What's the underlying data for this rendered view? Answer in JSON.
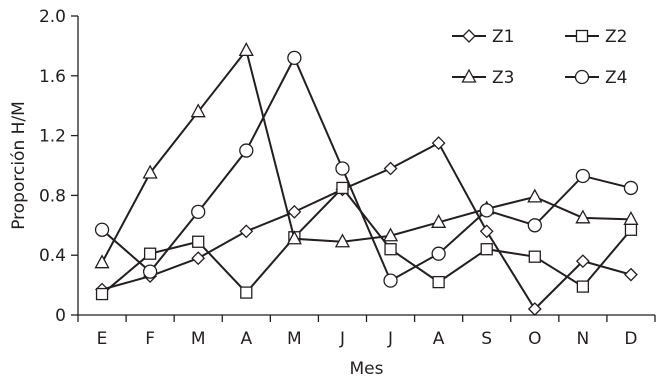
{
  "chart_data": {
    "type": "line",
    "categories": [
      "E",
      "F",
      "M",
      "A",
      "M",
      "J",
      "J",
      "A",
      "S",
      "O",
      "N",
      "D"
    ],
    "xlabel": "Mes",
    "ylabel": "Proporción H/M",
    "ylim": [
      0,
      2.0
    ],
    "yticks": [
      "0",
      "0.4",
      "0.8",
      "1.2",
      "1.6",
      "2.0"
    ],
    "grid": false,
    "legend_position": "top-right",
    "series": [
      {
        "name": "Z1",
        "marker": "diamond",
        "values": [
          0.17,
          0.26,
          0.38,
          0.56,
          0.69,
          0.84,
          0.98,
          1.15,
          0.56,
          0.04,
          0.36,
          0.27
        ]
      },
      {
        "name": "Z2",
        "marker": "square",
        "values": [
          0.14,
          0.41,
          0.49,
          0.15,
          0.52,
          0.85,
          0.44,
          0.22,
          0.44,
          0.39,
          0.19,
          0.57
        ]
      },
      {
        "name": "Z3",
        "marker": "triangle",
        "values": [
          0.35,
          0.95,
          1.36,
          1.77,
          0.51,
          0.49,
          0.53,
          0.62,
          0.71,
          0.79,
          0.65,
          0.64
        ]
      },
      {
        "name": "Z4",
        "marker": "circle",
        "values": [
          0.57,
          0.29,
          0.69,
          1.1,
          1.72,
          0.98,
          0.23,
          0.41,
          0.7,
          0.6,
          0.93,
          0.85
        ]
      }
    ]
  }
}
